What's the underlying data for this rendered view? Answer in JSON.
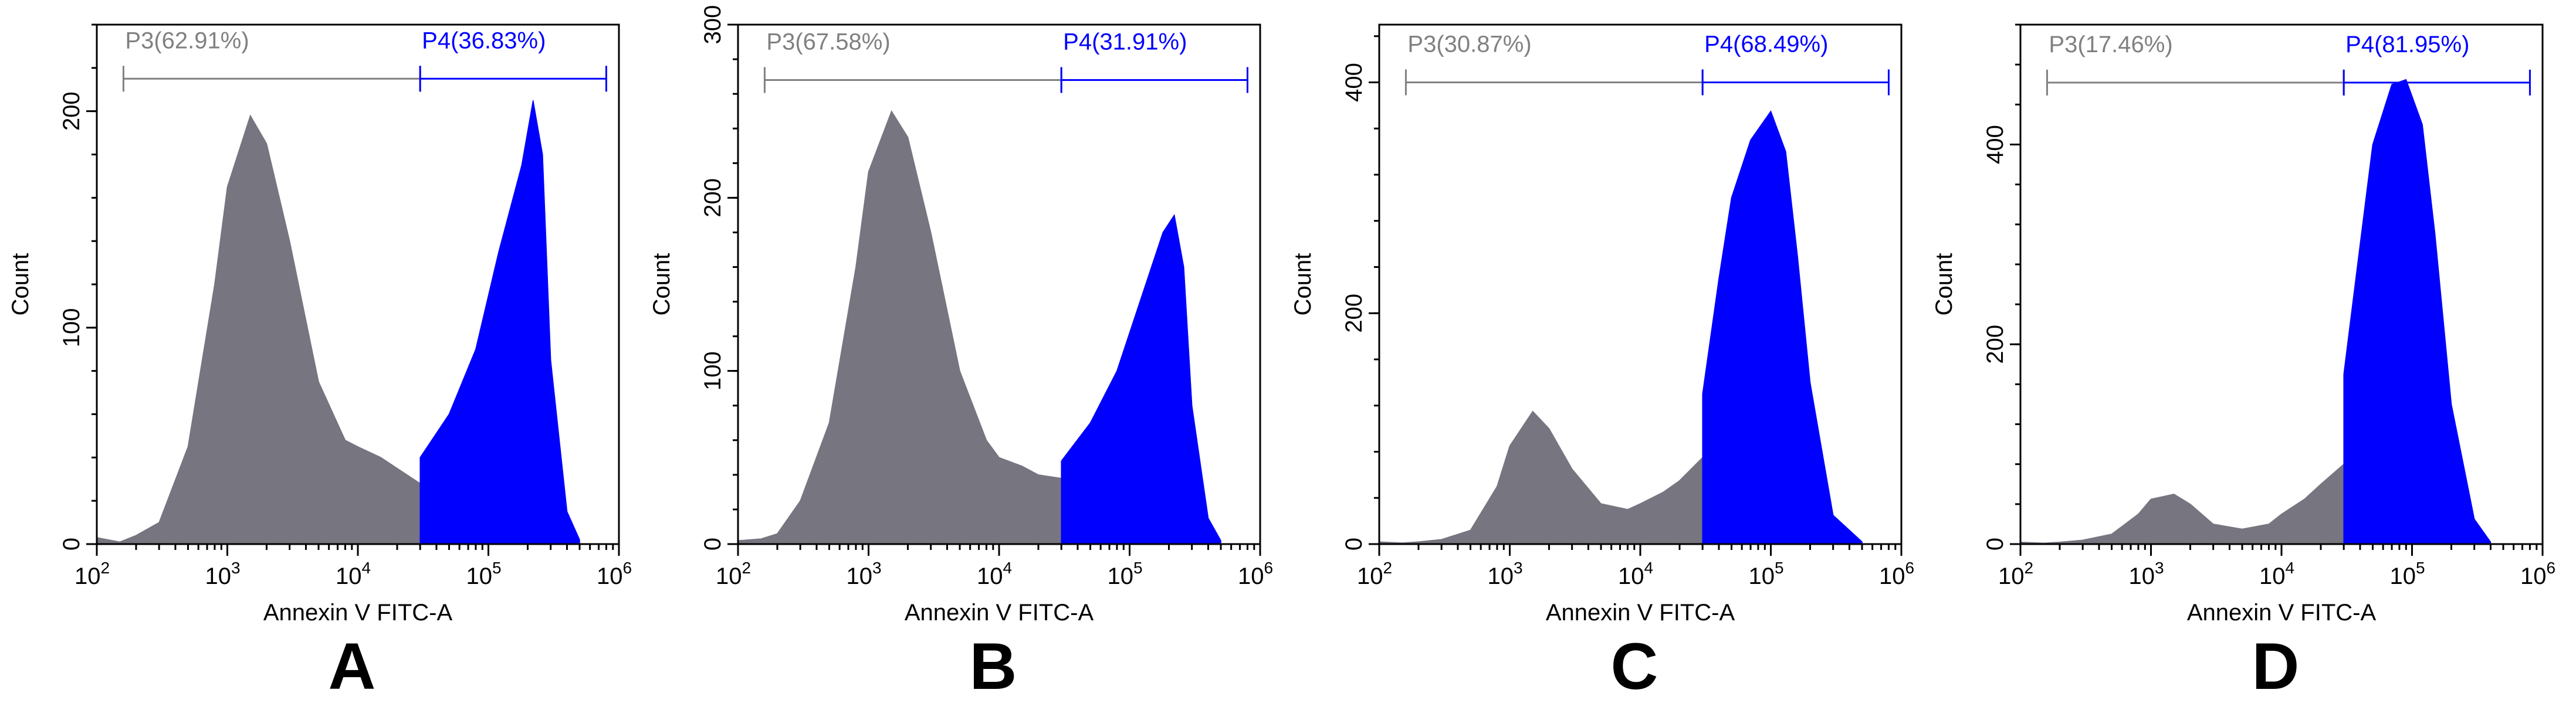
{
  "chart_data": [
    {
      "type": "area",
      "panel": "A",
      "xlabel": "Annexin V FITC-A",
      "ylabel": "Count",
      "xscale": "log",
      "xlim": [
        100,
        1000000
      ],
      "ylim": [
        0,
        240
      ],
      "yticks": [
        "0",
        "100",
        "200"
      ],
      "ytick_values": [
        0,
        100,
        200
      ],
      "xticks": [
        "10",
        "10",
        "10",
        "10",
        "10"
      ],
      "xtick_exponents": [
        "2",
        "3",
        "4",
        "5",
        "6"
      ],
      "gates": [
        {
          "label": "P3(62.91%)",
          "from": 160,
          "to": 30000,
          "color": "#808080",
          "y": 215
        },
        {
          "label": "P4(36.83%)",
          "from": 30000,
          "to": 800000,
          "color": "#0000ff",
          "y": 215
        }
      ],
      "series": [
        {
          "name": "P3",
          "color": "#77757f",
          "x": [
            100,
            150,
            200,
            300,
            500,
            800,
            1000,
            1500,
            2000,
            3000,
            5000,
            8000,
            10000,
            15000,
            20000,
            30000
          ],
          "y": [
            3,
            1,
            4,
            10,
            45,
            120,
            165,
            198,
            185,
            140,
            75,
            48,
            45,
            40,
            35,
            28
          ]
        },
        {
          "name": "P4",
          "color": "#0000ff",
          "x": [
            30000,
            50000,
            80000,
            120000,
            180000,
            220000,
            260000,
            300000,
            400000,
            500000
          ],
          "y": [
            40,
            60,
            90,
            135,
            175,
            205,
            180,
            85,
            15,
            2
          ]
        }
      ]
    },
    {
      "type": "area",
      "panel": "B",
      "xlabel": "Annexin V FITC-A",
      "ylabel": "Count",
      "xscale": "log",
      "xlim": [
        100,
        1000000
      ],
      "ylim": [
        0,
        300
      ],
      "yticks": [
        "0",
        "100",
        "200",
        "300"
      ],
      "ytick_values": [
        0,
        100,
        200,
        300
      ],
      "xticks": [
        "10",
        "10",
        "10",
        "10",
        "10"
      ],
      "xtick_exponents": [
        "2",
        "3",
        "4",
        "5",
        "6"
      ],
      "gates": [
        {
          "label": "P3(67.58%)",
          "from": 160,
          "to": 30000,
          "color": "#808080",
          "y": 268
        },
        {
          "label": "P4(31.91%)",
          "from": 30000,
          "to": 800000,
          "color": "#0000ff",
          "y": 268
        }
      ],
      "series": [
        {
          "name": "P3",
          "color": "#77757f",
          "x": [
            100,
            150,
            200,
            300,
            500,
            800,
            1000,
            1500,
            2000,
            3000,
            5000,
            8000,
            10000,
            15000,
            20000,
            30000
          ],
          "y": [
            2,
            3,
            6,
            25,
            70,
            160,
            215,
            250,
            235,
            180,
            100,
            60,
            50,
            45,
            40,
            38
          ]
        },
        {
          "name": "P4",
          "color": "#0000ff",
          "x": [
            30000,
            50000,
            80000,
            120000,
            180000,
            220000,
            260000,
            300000,
            400000,
            500000
          ],
          "y": [
            48,
            70,
            100,
            140,
            180,
            190,
            160,
            80,
            15,
            2
          ]
        }
      ]
    },
    {
      "type": "area",
      "panel": "C",
      "xlabel": "Annexin V FITC-A",
      "ylabel": "Count",
      "xscale": "log",
      "xlim": [
        100,
        1000000
      ],
      "ylim": [
        0,
        450
      ],
      "yticks": [
        "0",
        "200",
        "400"
      ],
      "ytick_values": [
        0,
        200,
        400
      ],
      "xticks": [
        "10",
        "10",
        "10",
        "10",
        "10"
      ],
      "xtick_exponents": [
        "2",
        "3",
        "4",
        "5",
        "6"
      ],
      "gates": [
        {
          "label": "P3(30.87%)",
          "from": 160,
          "to": 30000,
          "color": "#808080",
          "y": 400
        },
        {
          "label": "P4(68.49%)",
          "from": 30000,
          "to": 800000,
          "color": "#0000ff",
          "y": 400
        }
      ],
      "series": [
        {
          "name": "P3",
          "color": "#77757f",
          "x": [
            100,
            150,
            200,
            300,
            500,
            800,
            1000,
            1500,
            2000,
            3000,
            5000,
            8000,
            10000,
            15000,
            20000,
            30000
          ],
          "y": [
            2,
            1,
            2,
            4,
            12,
            50,
            85,
            115,
            100,
            65,
            35,
            30,
            35,
            45,
            55,
            75
          ]
        },
        {
          "name": "P4",
          "color": "#0000ff",
          "x": [
            30000,
            40000,
            50000,
            70000,
            100000,
            130000,
            160000,
            200000,
            300000,
            500000
          ],
          "y": [
            130,
            230,
            300,
            350,
            375,
            340,
            250,
            140,
            25,
            2
          ]
        }
      ]
    },
    {
      "type": "area",
      "panel": "D",
      "xlabel": "Annexin V FITC-A",
      "ylabel": "Count",
      "xscale": "log",
      "xlim": [
        100,
        1000000
      ],
      "ylim": [
        0,
        520
      ],
      "yticks": [
        "0",
        "200",
        "400"
      ],
      "ytick_values": [
        0,
        200,
        400
      ],
      "xticks": [
        "10",
        "10",
        "10",
        "10",
        "10"
      ],
      "xtick_exponents": [
        "2",
        "3",
        "4",
        "5",
        "6"
      ],
      "gates": [
        {
          "label": "P3(17.46%)",
          "from": 160,
          "to": 30000,
          "color": "#808080",
          "y": 462
        },
        {
          "label": "P4(81.95%)",
          "from": 30000,
          "to": 800000,
          "color": "#0000ff",
          "y": 462
        }
      ],
      "series": [
        {
          "name": "P3",
          "color": "#77757f",
          "x": [
            100,
            150,
            200,
            300,
            500,
            800,
            1000,
            1500,
            2000,
            3000,
            5000,
            8000,
            10000,
            15000,
            20000,
            30000
          ],
          "y": [
            2,
            1,
            2,
            4,
            10,
            30,
            45,
            50,
            40,
            20,
            15,
            20,
            30,
            45,
            60,
            80
          ]
        },
        {
          "name": "P4",
          "color": "#0000ff",
          "x": [
            30000,
            40000,
            50000,
            70000,
            90000,
            120000,
            150000,
            200000,
            300000,
            400000
          ],
          "y": [
            170,
            300,
            400,
            460,
            465,
            420,
            310,
            140,
            25,
            2
          ]
        }
      ]
    }
  ]
}
